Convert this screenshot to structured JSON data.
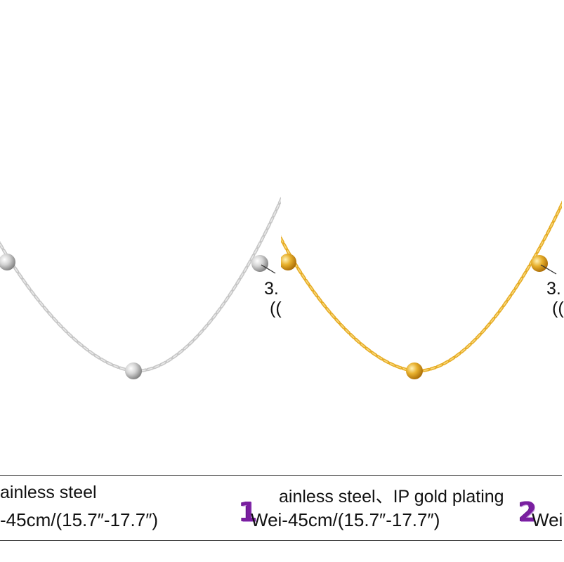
{
  "panels": [
    {
      "variant": "silver",
      "chain_color": "#c9c9c9",
      "bead_color": "#bdbdbd",
      "dim_line1": "3.",
      "dim_line2": "(("
    },
    {
      "variant": "gold",
      "chain_color": "#e8b12e",
      "bead_color": "#e3a51f",
      "dim_line1": "3.",
      "dim_line2": "(("
    }
  ],
  "specs": [
    {
      "material": "ainless steel",
      "length": "-45cm/(15.7″-17.7″)",
      "number": "1"
    },
    {
      "material": "ainless steel、IP gold plating",
      "length": "Wei-45cm/(15.7″-17.7″)",
      "number": "2"
    },
    {
      "length": "Wei"
    }
  ]
}
